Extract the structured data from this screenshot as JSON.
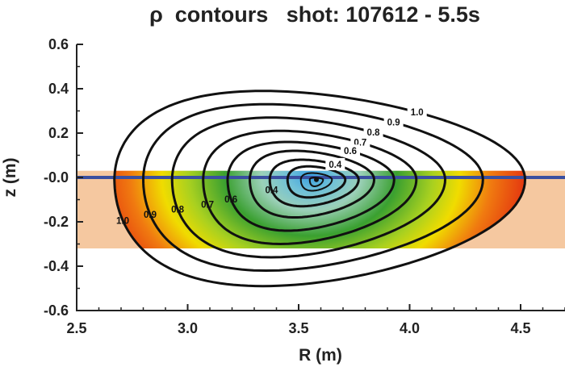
{
  "chart_data": {
    "type": "contour",
    "title": "ρ  contours   shot: 107612 - 5.5s",
    "xlabel": "R (m)",
    "ylabel": "z (m)",
    "xlim": [
      2.5,
      4.7
    ],
    "ylim": [
      -0.6,
      0.6
    ],
    "x_ticks": [
      "2.5",
      "3.0",
      "3.5",
      "4.0",
      "4.5"
    ],
    "y_ticks": [
      "0.6",
      "0.4",
      "0.2",
      "-0.0",
      "-0.2",
      "-0.4",
      "-0.6"
    ],
    "magnetic_axis": {
      "R": 3.58,
      "z": -0.01
    },
    "contours": [
      {
        "rho": 1.0,
        "r_min": 2.67,
        "r_max": 4.52,
        "z_top": 0.4,
        "z_bottom": -0.48,
        "labels": [
          "1.0",
          "1.0"
        ]
      },
      {
        "rho": 0.9,
        "r_min": 2.8,
        "r_max": 4.33,
        "z_top": 0.34,
        "z_bottom": -0.41,
        "labels": [
          "0.9",
          "0.9"
        ]
      },
      {
        "rho": 0.8,
        "r_min": 2.93,
        "r_max": 4.16,
        "z_top": 0.28,
        "z_bottom": -0.35,
        "labels": [
          "0.8",
          "0.8"
        ]
      },
      {
        "rho": 0.7,
        "r_min": 3.07,
        "r_max": 4.03,
        "z_top": 0.22,
        "z_bottom": -0.29,
        "labels": [
          "0.7",
          "0.7"
        ]
      },
      {
        "rho": 0.6,
        "r_min": 3.18,
        "r_max": 3.93,
        "z_top": 0.17,
        "z_bottom": -0.23,
        "labels": [
          "0.6",
          "0.6"
        ]
      },
      {
        "rho": 0.5,
        "r_min": 3.28,
        "r_max": 3.84,
        "z_top": 0.13,
        "z_bottom": -0.17,
        "labels": []
      },
      {
        "rho": 0.4,
        "r_min": 3.37,
        "r_max": 3.77,
        "z_top": 0.09,
        "z_bottom": -0.12,
        "labels": [
          "0.4",
          "0.4"
        ]
      },
      {
        "rho": 0.3,
        "r_min": 3.45,
        "r_max": 3.71,
        "z_top": 0.06,
        "z_bottom": -0.08,
        "labels": []
      },
      {
        "rho": 0.2,
        "r_min": 3.51,
        "r_max": 3.65,
        "z_top": 0.03,
        "z_bottom": -0.05,
        "labels": []
      },
      {
        "rho": 0.1,
        "r_min": 3.55,
        "r_max": 3.61,
        "z_top": 0.01,
        "z_bottom": -0.03,
        "labels": []
      }
    ],
    "shaded_band": {
      "z_top": 0.03,
      "z_bottom": -0.32,
      "r_min": 2.5,
      "r_max": 4.7,
      "color": "#f5c8a0"
    },
    "midplane_line": {
      "z": 0.0,
      "color": "#3a4fa0"
    },
    "colors": {
      "rho_0": "#3aa0e0",
      "rho_0_4": "#9bd0b8",
      "rho_0_6": "#3aa030",
      "rho_0_8": "#f0dc00",
      "rho_1_0": "#e02010",
      "contour_line": "#111111"
    }
  }
}
